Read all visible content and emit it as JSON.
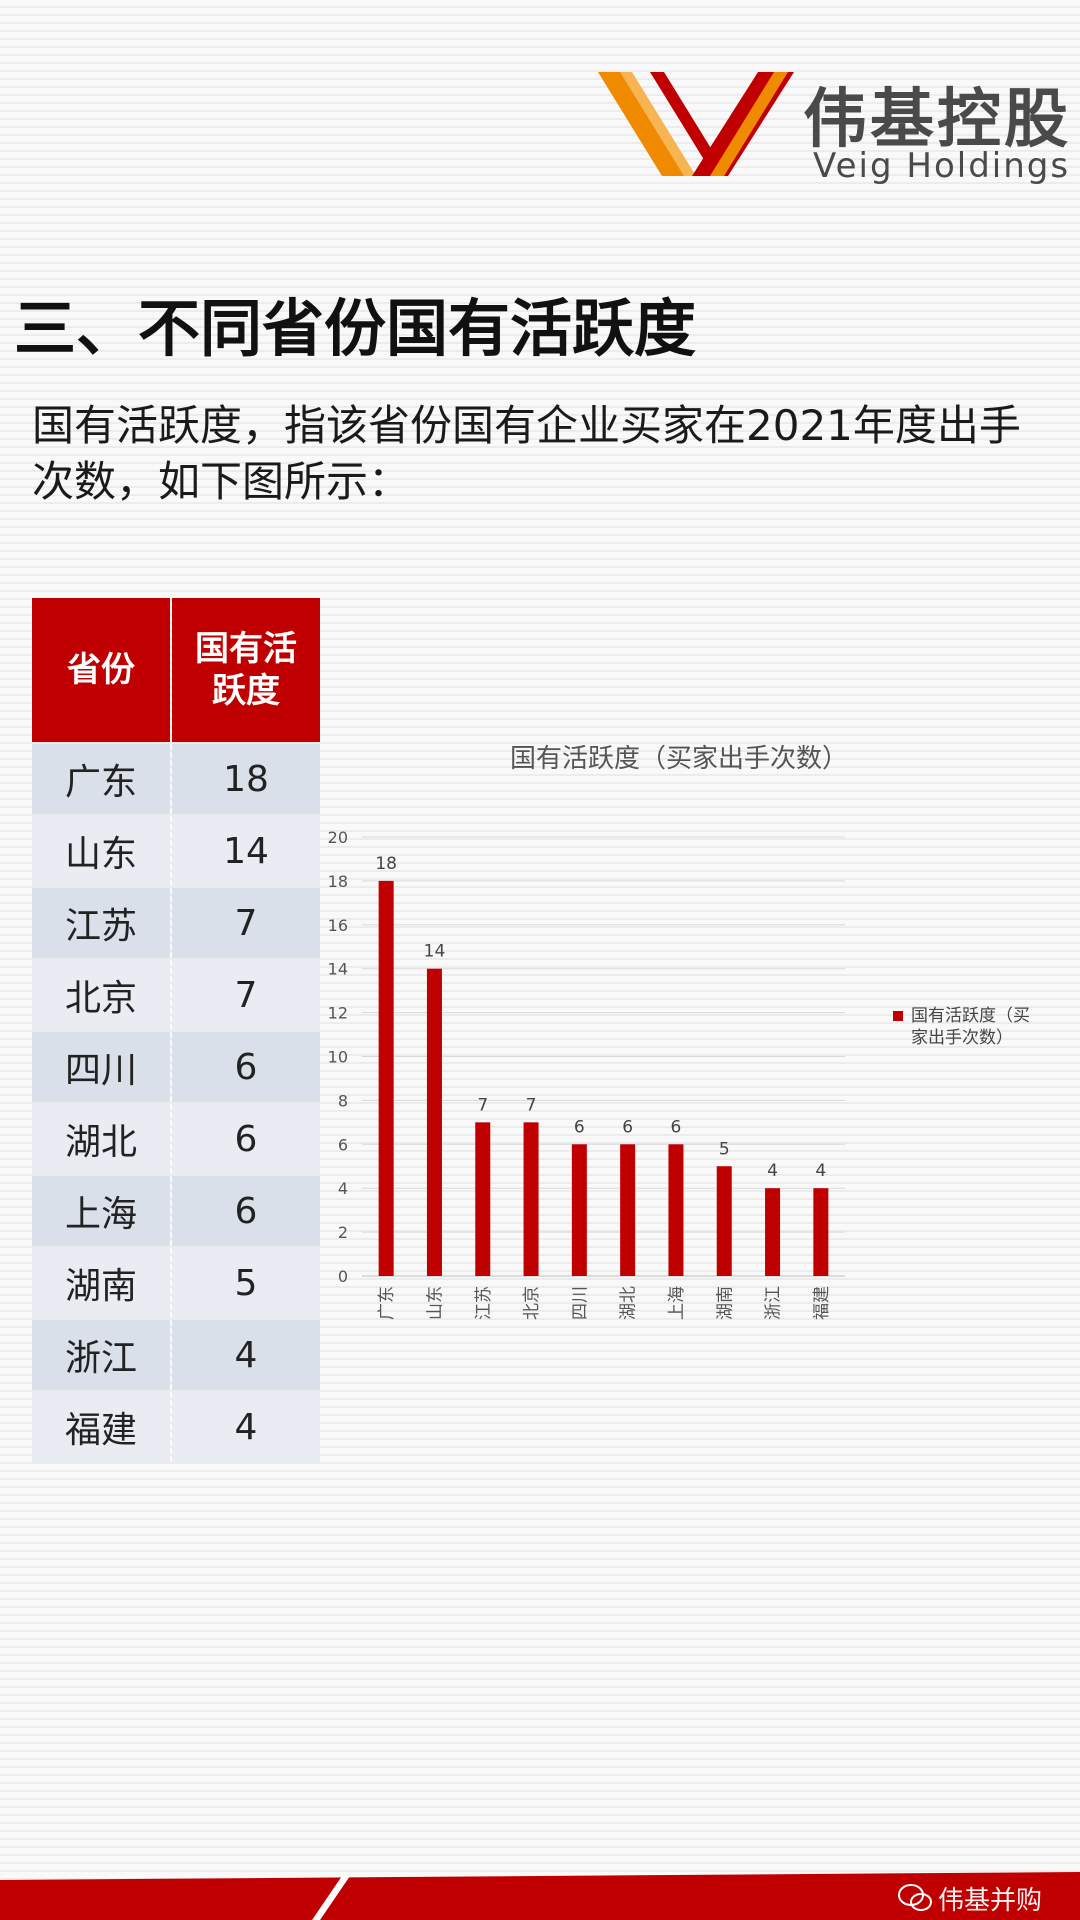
{
  "brand": {
    "name_cn": "伟基控股",
    "name_en": "Veig Holdings"
  },
  "heading": "三、不同省份国有活跃度",
  "description": "国有活跃度，指该省份国有企业买家在2021年度出手次数，如下图所示：",
  "table": {
    "headers": [
      "省份",
      "国有活跃度"
    ],
    "rows": [
      [
        "广东",
        "18"
      ],
      [
        "山东",
        "14"
      ],
      [
        "江苏",
        "7"
      ],
      [
        "北京",
        "7"
      ],
      [
        "四川",
        "6"
      ],
      [
        "湖北",
        "6"
      ],
      [
        "上海",
        "6"
      ],
      [
        "湖南",
        "5"
      ],
      [
        "浙江",
        "4"
      ],
      [
        "福建",
        "4"
      ]
    ]
  },
  "chart_data": {
    "type": "bar",
    "title": "国有活跃度（买家出手次数）",
    "categories": [
      "广东",
      "山东",
      "江苏",
      "北京",
      "四川",
      "湖北",
      "上海",
      "湖南",
      "浙江",
      "福建"
    ],
    "series": [
      {
        "name": "国有活跃度（买家出手次数）",
        "values": [
          18,
          14,
          7,
          7,
          6,
          6,
          6,
          5,
          4,
          4
        ]
      }
    ],
    "ylim": [
      0,
      20
    ],
    "yticks": [
      0,
      2,
      4,
      6,
      8,
      10,
      12,
      14,
      16,
      18,
      20
    ],
    "grid": true,
    "data_labels": true,
    "legend": "right",
    "color": "#c00000"
  },
  "watermark": "伟基并购",
  "colors": {
    "accent": "#c00000",
    "logo_orange": "#f08a00"
  }
}
